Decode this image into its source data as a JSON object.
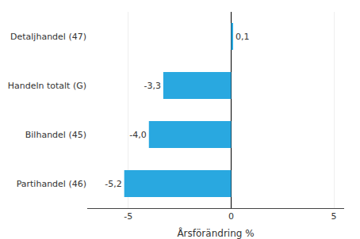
{
  "chart_data": {
    "type": "bar",
    "orientation": "horizontal",
    "categories": [
      "Partihandel (46)",
      "Bilhandel (45)",
      "Handeln totalt (G)",
      "Detaljhandel (47)"
    ],
    "values": [
      -5.2,
      -4.0,
      -3.3,
      0.1
    ],
    "value_labels": [
      "-5,2",
      "-4,0",
      "-3,3",
      "0,1"
    ],
    "color": "#29a8e0",
    "xlabel": "Årsförändring %",
    "xlim": [
      -7,
      5.5
    ],
    "xticks": [
      -5,
      0,
      5
    ],
    "grid": true
  }
}
